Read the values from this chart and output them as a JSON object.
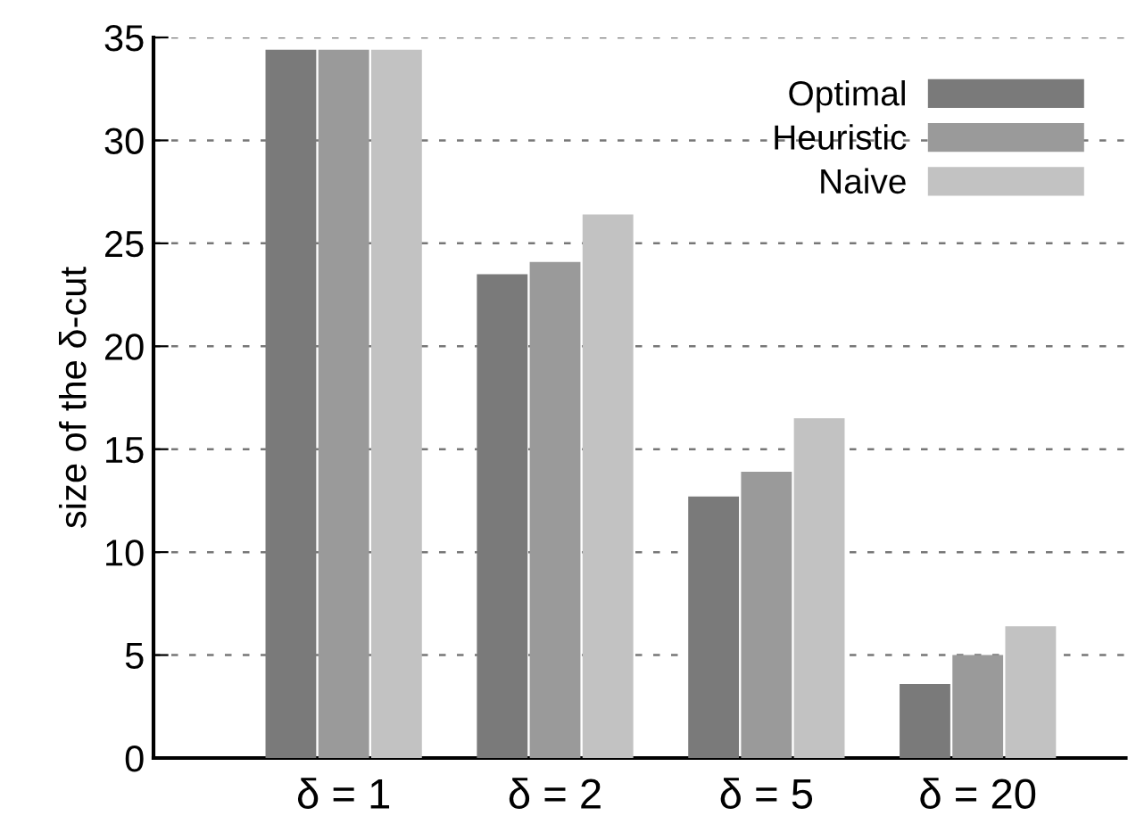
{
  "chart_data": {
    "type": "bar",
    "ylabel": "size of the δ-cut",
    "categories": [
      "δ = 1",
      "δ = 2",
      "δ = 5",
      "δ = 20"
    ],
    "series": [
      {
        "name": "Optimal",
        "color": "#7a7a7a",
        "values": [
          34.4,
          23.5,
          12.7,
          3.6
        ]
      },
      {
        "name": "Heuristic",
        "color": "#9a9a9a",
        "values": [
          34.4,
          24.1,
          13.9,
          5.0
        ]
      },
      {
        "name": "Naive",
        "color": "#c2c2c2",
        "values": [
          34.4,
          26.4,
          16.5,
          6.4
        ]
      }
    ],
    "ylim": [
      0,
      35
    ],
    "yticks": [
      0,
      5,
      10,
      15,
      20,
      25,
      30,
      35
    ],
    "grid": "y",
    "legend": "top right"
  }
}
